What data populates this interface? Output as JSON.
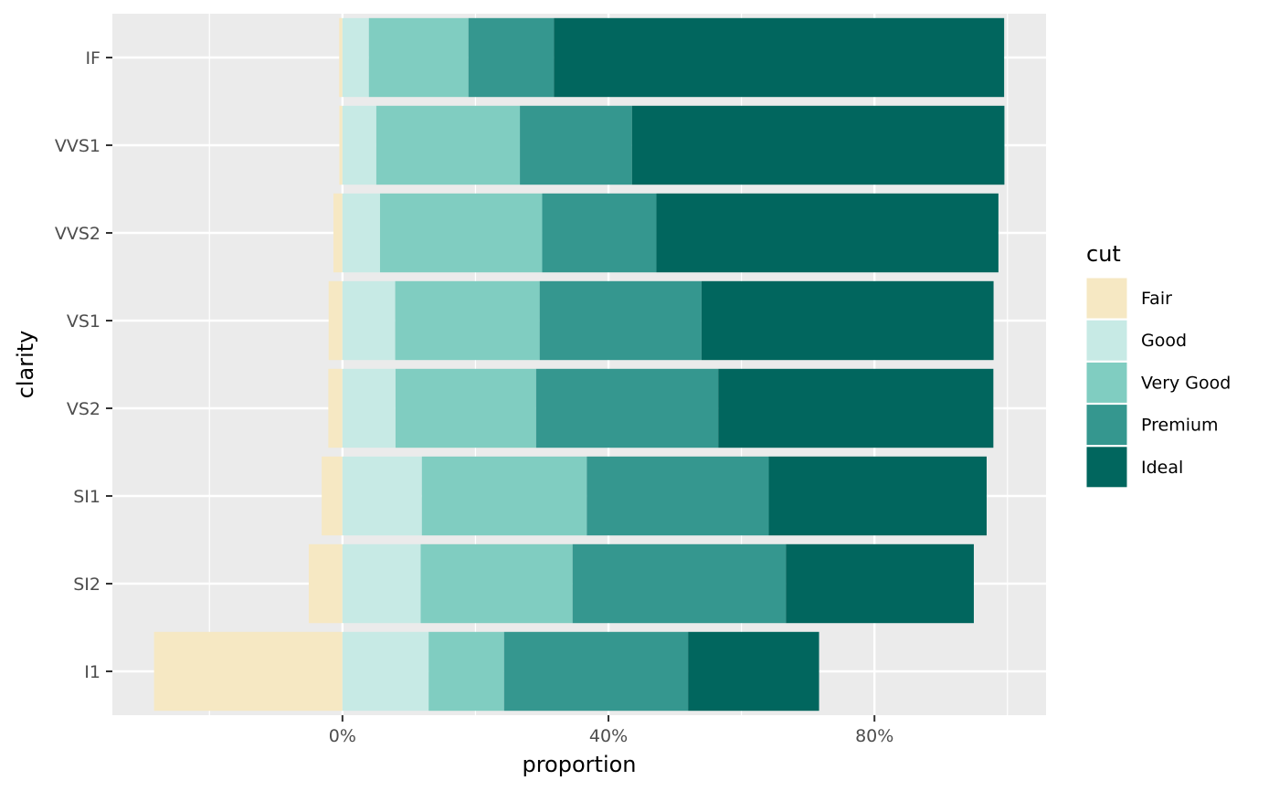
{
  "chart_data": {
    "type": "bar",
    "orientation": "horizontal",
    "stacked": true,
    "diverging": true,
    "xlabel": "proportion",
    "ylabel": "clarity",
    "xlim": [
      -34.6,
      105.8
    ],
    "x_unit": "%",
    "x_ticks": [
      0,
      40,
      80
    ],
    "x_tick_labels": [
      "0%",
      "40%",
      "80%"
    ],
    "x_minor_gridlines": [
      -20,
      20,
      60,
      100
    ],
    "grid": true,
    "categories": [
      "IF",
      "VVS1",
      "VVS2",
      "VS1",
      "VS2",
      "SI1",
      "SI2",
      "I1"
    ],
    "legend": {
      "title": "cut",
      "position": "right"
    },
    "series": [
      {
        "name": "Fair",
        "color": "#f6e8c3",
        "direction": "negative",
        "values": [
          0.5,
          0.47,
          1.36,
          2.08,
          2.13,
          3.12,
          5.07,
          28.34
        ]
      },
      {
        "name": "Good",
        "color": "#c7eae5",
        "values": [
          3.97,
          5.09,
          5.65,
          7.93,
          7.98,
          11.94,
          11.76,
          12.96
        ]
      },
      {
        "name": "Very Good",
        "color": "#80cdc1",
        "values": [
          14.97,
          21.59,
          24.38,
          21.72,
          21.14,
          24.8,
          22.84,
          11.34
        ]
      },
      {
        "name": "Premium",
        "color": "#35978f",
        "values": [
          12.85,
          16.85,
          17.17,
          24.34,
          27.39,
          27.36,
          32.08,
          27.67
        ]
      },
      {
        "name": "Ideal",
        "color": "#01665e",
        "values": [
          67.71,
          56.01,
          51.44,
          43.92,
          41.37,
          32.77,
          28.26,
          19.7
        ]
      }
    ]
  }
}
